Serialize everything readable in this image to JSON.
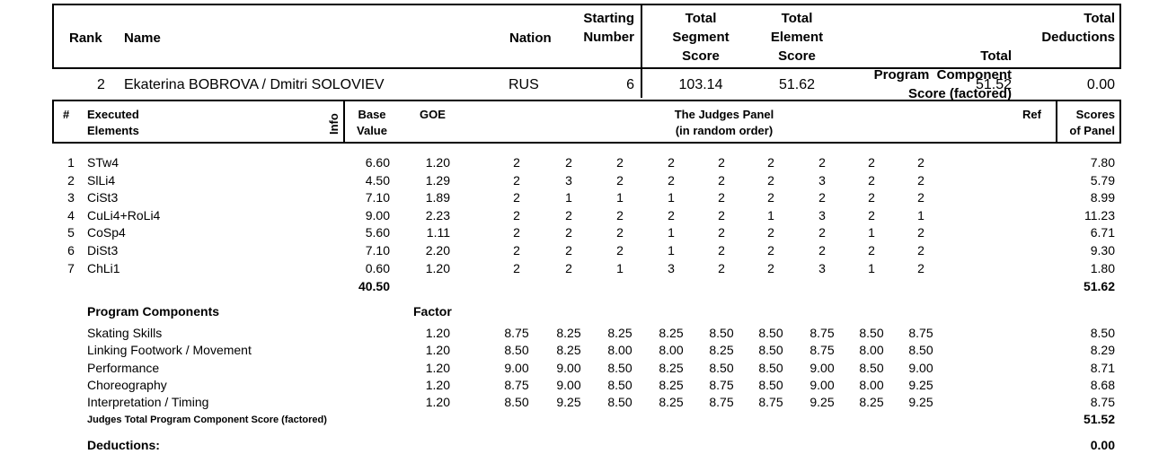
{
  "header": {
    "rank": "Rank",
    "name": "Name",
    "nation": "Nation",
    "starting_number": [
      "Starting",
      "Number"
    ],
    "tss": [
      "Total",
      "Segment",
      "Score"
    ],
    "tes": [
      "Total",
      "Element",
      "Score"
    ],
    "pcs": [
      "Total",
      "Program  Component",
      "Score (factored)"
    ],
    "ded": [
      "Total",
      "Deductions"
    ]
  },
  "skater": {
    "rank": "2",
    "name": "Ekaterina BOBROVA / Dmitri SOLOVIEV",
    "nation": "RUS",
    "starting_number": "6",
    "tss": "103.14",
    "tes": "51.62",
    "pcs": "51.52",
    "ded": "0.00"
  },
  "elem_header": {
    "num": "#",
    "executed": [
      "Executed",
      "Elements"
    ],
    "info": "Info",
    "base": [
      "Base",
      "Value"
    ],
    "goe": "GOE",
    "panel": [
      "The Judges Panel",
      "(in random order)"
    ],
    "ref": "Ref",
    "scores": [
      "Scores",
      "of Panel"
    ]
  },
  "elements": [
    {
      "n": "1",
      "name": "STw4",
      "base": "6.60",
      "goe": "1.20",
      "j": [
        "2",
        "2",
        "2",
        "2",
        "2",
        "2",
        "2",
        "2",
        "2"
      ],
      "score": "7.80"
    },
    {
      "n": "2",
      "name": "SlLi4",
      "base": "4.50",
      "goe": "1.29",
      "j": [
        "2",
        "3",
        "2",
        "2",
        "2",
        "2",
        "3",
        "2",
        "2"
      ],
      "score": "5.79"
    },
    {
      "n": "3",
      "name": "CiSt3",
      "base": "7.10",
      "goe": "1.89",
      "j": [
        "2",
        "1",
        "1",
        "1",
        "2",
        "2",
        "2",
        "2",
        "2"
      ],
      "score": "8.99"
    },
    {
      "n": "4",
      "name": "CuLi4+RoLi4",
      "base": "9.00",
      "goe": "2.23",
      "j": [
        "2",
        "2",
        "2",
        "2",
        "2",
        "1",
        "3",
        "2",
        "1"
      ],
      "score": "11.23"
    },
    {
      "n": "5",
      "name": "CoSp4",
      "base": "5.60",
      "goe": "1.11",
      "j": [
        "2",
        "2",
        "2",
        "1",
        "2",
        "2",
        "2",
        "1",
        "2"
      ],
      "score": "6.71"
    },
    {
      "n": "6",
      "name": "DiSt3",
      "base": "7.10",
      "goe": "2.20",
      "j": [
        "2",
        "2",
        "2",
        "1",
        "2",
        "2",
        "2",
        "2",
        "2"
      ],
      "score": "9.30"
    },
    {
      "n": "7",
      "name": "ChLi1",
      "base": "0.60",
      "goe": "1.20",
      "j": [
        "2",
        "2",
        "1",
        "3",
        "2",
        "2",
        "3",
        "1",
        "2"
      ],
      "score": "1.80"
    }
  ],
  "elements_base_total": "40.50",
  "elements_score_total": "51.62",
  "pc_header": {
    "title": "Program Components",
    "factor": "Factor"
  },
  "components": [
    {
      "name": "Skating Skills",
      "factor": "1.20",
      "j": [
        "8.75",
        "8.25",
        "8.25",
        "8.25",
        "8.50",
        "8.50",
        "8.75",
        "8.50",
        "8.75"
      ],
      "score": "8.50"
    },
    {
      "name": "Linking Footwork / Movement",
      "factor": "1.20",
      "j": [
        "8.50",
        "8.25",
        "8.00",
        "8.00",
        "8.25",
        "8.50",
        "8.75",
        "8.00",
        "8.50"
      ],
      "score": "8.29"
    },
    {
      "name": "Performance",
      "factor": "1.20",
      "j": [
        "9.00",
        "9.00",
        "8.50",
        "8.25",
        "8.50",
        "8.50",
        "9.00",
        "8.50",
        "9.00"
      ],
      "score": "8.71"
    },
    {
      "name": "Choreography",
      "factor": "1.20",
      "j": [
        "8.75",
        "9.00",
        "8.50",
        "8.25",
        "8.75",
        "8.50",
        "9.00",
        "8.00",
        "9.25"
      ],
      "score": "8.68"
    },
    {
      "name": "Interpretation / Timing",
      "factor": "1.20",
      "j": [
        "8.50",
        "9.25",
        "8.50",
        "8.25",
        "8.75",
        "8.75",
        "9.25",
        "8.25",
        "9.25"
      ],
      "score": "8.75"
    }
  ],
  "pcs_total_label": "Judges Total Program Component Score (factored)",
  "pcs_total": "51.52",
  "deductions_label": "Deductions:",
  "deductions_total": "0.00"
}
